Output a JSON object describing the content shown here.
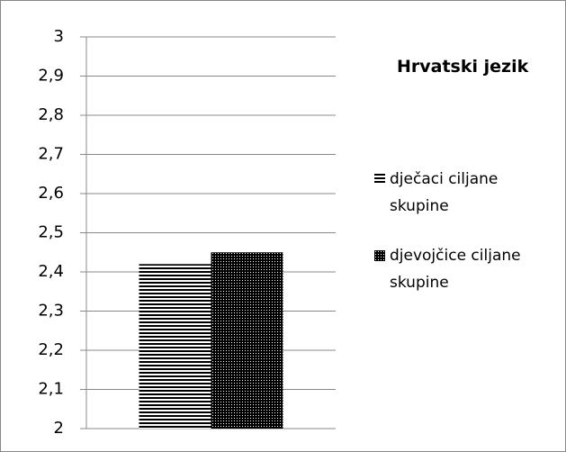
{
  "chart_data": {
    "type": "bar",
    "title": "Hrvatski jezik",
    "categories": [
      null
    ],
    "series": [
      {
        "name": "dječaci ciljane skupine",
        "color": "#000000",
        "pattern": "horizontal-lines",
        "values": [
          2.42
        ]
      },
      {
        "name": "djevojčice ciljane skupine",
        "color": "#000000",
        "pattern": "dots",
        "values": [
          2.45
        ]
      }
    ],
    "ylim": [
      2,
      3
    ],
    "yticks": [
      2,
      {
        "value": 2.1,
        "label": "2,1"
      },
      {
        "value": 2.2,
        "label": "2,2"
      },
      {
        "value": 2.3,
        "label": "2,3"
      },
      {
        "value": 2.4,
        "label": "2,4"
      },
      {
        "value": 2.5,
        "label": "2,5"
      },
      {
        "value": 2.6,
        "label": "2,6"
      },
      {
        "value": 2.7,
        "label": "2,7"
      },
      {
        "value": 2.8,
        "label": "2,8"
      },
      {
        "value": 2.9,
        "label": "2,9"
      },
      3
    ],
    "grid": true,
    "legend": "right"
  }
}
